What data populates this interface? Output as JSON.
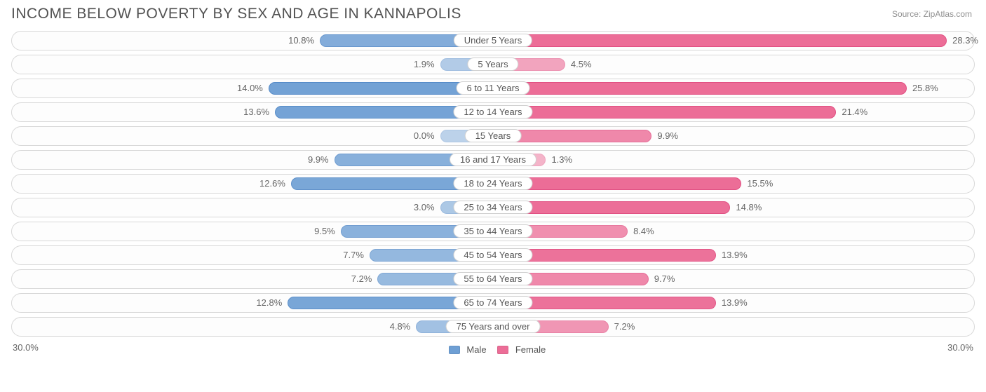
{
  "header": {
    "title": "INCOME BELOW POVERTY BY SEX AND AGE IN KANNAPOLIS",
    "source": "Source: ZipAtlas.com"
  },
  "chart": {
    "type": "diverging-bar",
    "axis_max": 30.0,
    "axis_label_left": "30.0%",
    "axis_label_right": "30.0%",
    "row_background": "#fdfdfd",
    "row_border": "#d8d8d8",
    "text_color": "#666666",
    "title_color": "#525252",
    "title_fontsize": 21,
    "label_fontsize": 13,
    "male": {
      "label": "Male",
      "fill": "#6e9fd4",
      "stroke": "#4f86c6",
      "swatch": "#6e9fd4"
    },
    "female": {
      "label": "Female",
      "fill": "#ec6d97",
      "stroke": "#e14f82",
      "swatch": "#ec6d97"
    },
    "rows": [
      {
        "age": "Under 5 Years",
        "male": 10.8,
        "female": 28.3
      },
      {
        "age": "5 Years",
        "male": 1.9,
        "female": 4.5
      },
      {
        "age": "6 to 11 Years",
        "male": 14.0,
        "female": 25.8
      },
      {
        "age": "12 to 14 Years",
        "male": 13.6,
        "female": 21.4
      },
      {
        "age": "15 Years",
        "male": 0.0,
        "female": 9.9
      },
      {
        "age": "16 and 17 Years",
        "male": 9.9,
        "female": 1.3
      },
      {
        "age": "18 to 24 Years",
        "male": 12.6,
        "female": 15.5
      },
      {
        "age": "25 to 34 Years",
        "male": 3.0,
        "female": 14.8
      },
      {
        "age": "35 to 44 Years",
        "male": 9.5,
        "female": 8.4
      },
      {
        "age": "45 to 54 Years",
        "male": 7.7,
        "female": 13.9
      },
      {
        "age": "55 to 64 Years",
        "male": 7.2,
        "female": 9.7
      },
      {
        "age": "65 to 74 Years",
        "male": 12.8,
        "female": 13.9
      },
      {
        "age": "75 Years and over",
        "male": 4.8,
        "female": 7.2
      }
    ]
  }
}
